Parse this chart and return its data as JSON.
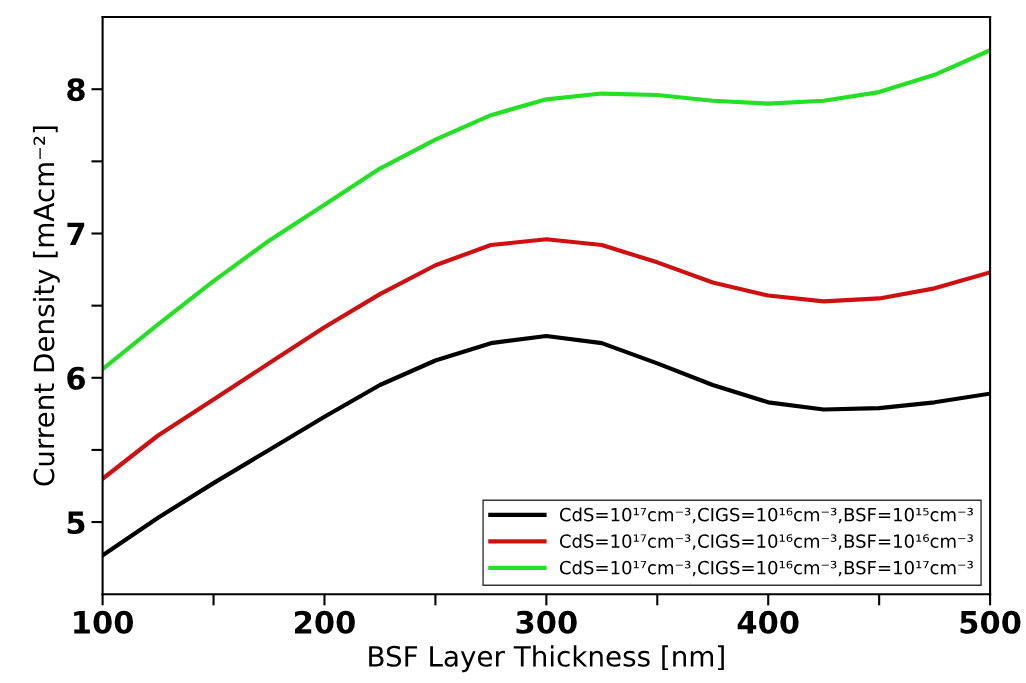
{
  "chart_data": {
    "type": "line",
    "xlabel": "BSF Layer Thickness [nm]",
    "ylabel": "Current Density [mAcm⁻²]",
    "x": [
      100,
      125,
      150,
      175,
      200,
      225,
      250,
      275,
      300,
      325,
      350,
      375,
      400,
      425,
      450,
      475,
      500
    ],
    "series": [
      {
        "name": "CdS=10¹⁷cm⁻³,CIGS=10¹⁶cm⁻³,BSF=10¹⁵cm⁻³",
        "color": "#000000",
        "values": [
          4.77,
          5.03,
          5.27,
          5.5,
          5.73,
          5.95,
          6.12,
          6.24,
          6.29,
          6.24,
          6.1,
          5.95,
          5.83,
          5.78,
          5.79,
          5.83,
          5.89
        ]
      },
      {
        "name": "CdS=10¹⁷cm⁻³,CIGS=10¹⁶cm⁻³,BSF=10¹⁶cm⁻³",
        "color": "#d01010",
        "values": [
          5.3,
          5.6,
          5.85,
          6.1,
          6.35,
          6.58,
          6.78,
          6.92,
          6.96,
          6.92,
          6.8,
          6.66,
          6.57,
          6.53,
          6.55,
          6.62,
          6.73
        ]
      },
      {
        "name": "CdS=10¹⁷cm⁻³,CIGS=10¹⁶cm⁻³,BSF=10¹⁷cm⁻³",
        "color": "#22e022",
        "values": [
          6.06,
          6.37,
          6.67,
          6.95,
          7.2,
          7.45,
          7.65,
          7.82,
          7.93,
          7.97,
          7.96,
          7.92,
          7.9,
          7.92,
          7.98,
          8.1,
          8.27
        ]
      }
    ],
    "xlim": [
      100,
      500
    ],
    "ylim": [
      4.5,
      8.5
    ],
    "xticks": [
      100,
      {
        "value": 150,
        "label": null
      },
      200,
      {
        "value": 250,
        "label": null
      },
      300,
      {
        "value": 350,
        "label": null
      },
      400,
      {
        "value": 450,
        "label": null
      },
      500
    ],
    "yticks": [
      5,
      {
        "value": 5.5,
        "label": null
      },
      6,
      {
        "value": 6.5,
        "label": null
      },
      7,
      {
        "value": 7.5,
        "label": null
      },
      8
    ],
    "grid": false,
    "legend": "bottom right",
    "marker": "none",
    "line_style": "solid"
  }
}
